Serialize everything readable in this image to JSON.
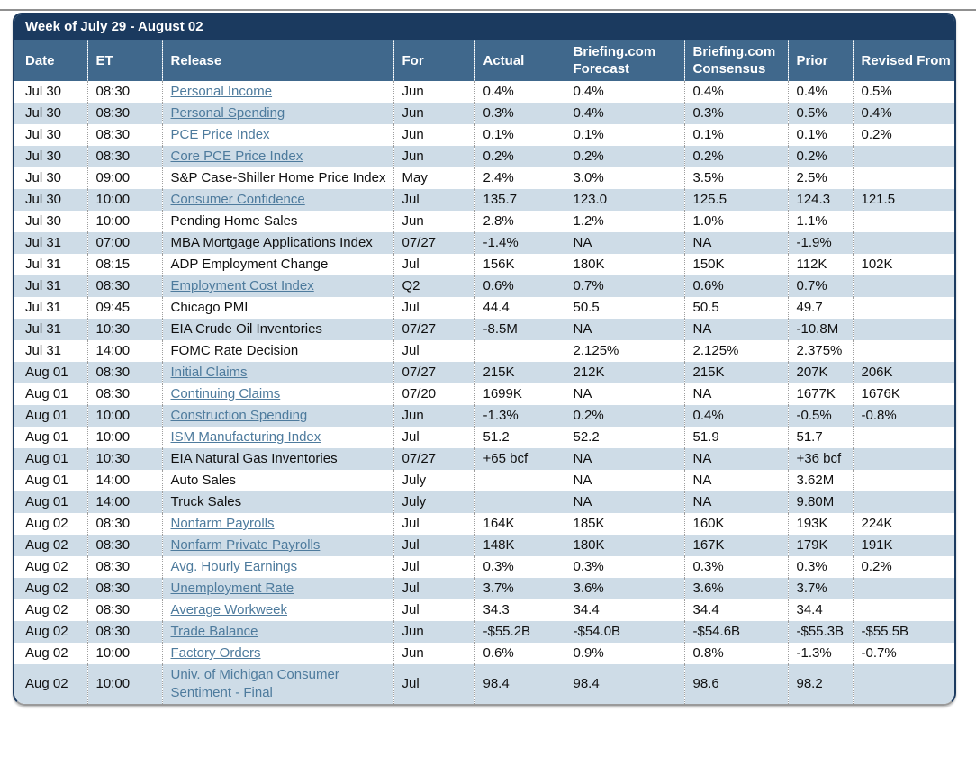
{
  "colors": {
    "title_bar_bg": "#1b3a5f",
    "header_bg": "#40688c",
    "row_alt_bg": "#cedce7",
    "link": "#4e7b9d",
    "outer_border": "#1c3b60"
  },
  "calendar": {
    "title": "Week of July 29 - August 02",
    "columns": [
      "Date",
      "ET",
      "Release",
      "For",
      "Actual",
      "Briefing.com Forecast",
      "Briefing.com Consensus",
      "Prior",
      "Revised From"
    ],
    "column_keys": [
      "date",
      "et",
      "release",
      "for",
      "actual",
      "forecast",
      "consensus",
      "prior",
      "revised"
    ],
    "rows": [
      {
        "date": "Jul 30",
        "et": "08:30",
        "release": "Personal Income",
        "link": true,
        "for": "Jun",
        "actual": "0.4%",
        "forecast": "0.4%",
        "consensus": "0.4%",
        "prior": "0.4%",
        "revised": "0.5%"
      },
      {
        "date": "Jul 30",
        "et": "08:30",
        "release": "Personal Spending",
        "link": true,
        "for": "Jun",
        "actual": "0.3%",
        "forecast": "0.4%",
        "consensus": "0.3%",
        "prior": "0.5%",
        "revised": "0.4%"
      },
      {
        "date": "Jul 30",
        "et": "08:30",
        "release": "PCE Price Index",
        "link": true,
        "for": "Jun",
        "actual": "0.1%",
        "forecast": "0.1%",
        "consensus": "0.1%",
        "prior": "0.1%",
        "revised": "0.2%"
      },
      {
        "date": "Jul 30",
        "et": "08:30",
        "release": "Core PCE Price Index",
        "link": true,
        "for": "Jun",
        "actual": "0.2%",
        "forecast": "0.2%",
        "consensus": "0.2%",
        "prior": "0.2%",
        "revised": ""
      },
      {
        "date": "Jul 30",
        "et": "09:00",
        "release": "S&P Case-Shiller Home Price Index",
        "link": false,
        "for": "May",
        "actual": "2.4%",
        "forecast": "3.0%",
        "consensus": "3.5%",
        "prior": "2.5%",
        "revised": ""
      },
      {
        "date": "Jul 30",
        "et": "10:00",
        "release": "Consumer Confidence",
        "link": true,
        "for": "Jul",
        "actual": "135.7",
        "forecast": "123.0",
        "consensus": "125.5",
        "prior": "124.3",
        "revised": "121.5"
      },
      {
        "date": "Jul 30",
        "et": "10:00",
        "release": "Pending Home Sales",
        "link": false,
        "for": "Jun",
        "actual": "2.8%",
        "forecast": "1.2%",
        "consensus": "1.0%",
        "prior": "1.1%",
        "revised": ""
      },
      {
        "date": "Jul 31",
        "et": "07:00",
        "release": "MBA Mortgage Applications Index",
        "link": false,
        "for": "07/27",
        "actual": "-1.4%",
        "forecast": "NA",
        "consensus": "NA",
        "prior": "-1.9%",
        "revised": ""
      },
      {
        "date": "Jul 31",
        "et": "08:15",
        "release": "ADP Employment Change",
        "link": false,
        "for": "Jul",
        "actual": "156K",
        "forecast": "180K",
        "consensus": "150K",
        "prior": "112K",
        "revised": "102K"
      },
      {
        "date": "Jul 31",
        "et": "08:30",
        "release": "Employment Cost Index",
        "link": true,
        "for": "Q2",
        "actual": "0.6%",
        "forecast": "0.7%",
        "consensus": "0.6%",
        "prior": "0.7%",
        "revised": ""
      },
      {
        "date": "Jul 31",
        "et": "09:45",
        "release": "Chicago PMI",
        "link": false,
        "for": "Jul",
        "actual": "44.4",
        "forecast": "50.5",
        "consensus": "50.5",
        "prior": "49.7",
        "revised": ""
      },
      {
        "date": "Jul 31",
        "et": "10:30",
        "release": "EIA Crude Oil Inventories",
        "link": false,
        "for": "07/27",
        "actual": "-8.5M",
        "forecast": "NA",
        "consensus": "NA",
        "prior": "-10.8M",
        "revised": ""
      },
      {
        "date": "Jul 31",
        "et": "14:00",
        "release": "FOMC Rate Decision",
        "link": false,
        "for": "Jul",
        "actual": "",
        "forecast": "2.125%",
        "consensus": "2.125%",
        "prior": "2.375%",
        "revised": ""
      },
      {
        "date": "Aug 01",
        "et": "08:30",
        "release": "Initial Claims",
        "link": true,
        "for": "07/27",
        "actual": "215K",
        "forecast": "212K",
        "consensus": "215K",
        "prior": "207K",
        "revised": "206K"
      },
      {
        "date": "Aug 01",
        "et": "08:30",
        "release": "Continuing Claims",
        "link": true,
        "for": "07/20",
        "actual": "1699K",
        "forecast": "NA",
        "consensus": "NA",
        "prior": "1677K",
        "revised": "1676K"
      },
      {
        "date": "Aug 01",
        "et": "10:00",
        "release": "Construction Spending",
        "link": true,
        "for": "Jun",
        "actual": "-1.3%",
        "forecast": "0.2%",
        "consensus": "0.4%",
        "prior": "-0.5%",
        "revised": "-0.8%"
      },
      {
        "date": "Aug 01",
        "et": "10:00",
        "release": "ISM Manufacturing Index",
        "link": true,
        "for": "Jul",
        "actual": "51.2",
        "forecast": "52.2",
        "consensus": "51.9",
        "prior": "51.7",
        "revised": ""
      },
      {
        "date": "Aug 01",
        "et": "10:30",
        "release": "EIA Natural Gas Inventories",
        "link": false,
        "for": "07/27",
        "actual": "+65 bcf",
        "forecast": "NA",
        "consensus": "NA",
        "prior": "+36 bcf",
        "revised": ""
      },
      {
        "date": "Aug 01",
        "et": "14:00",
        "release": "Auto Sales",
        "link": false,
        "for": "July",
        "actual": "",
        "forecast": "NA",
        "consensus": "NA",
        "prior": "3.62M",
        "revised": ""
      },
      {
        "date": "Aug 01",
        "et": "14:00",
        "release": "Truck Sales",
        "link": false,
        "for": "July",
        "actual": "",
        "forecast": "NA",
        "consensus": "NA",
        "prior": "9.80M",
        "revised": ""
      },
      {
        "date": "Aug 02",
        "et": "08:30",
        "release": "Nonfarm Payrolls",
        "link": true,
        "for": "Jul",
        "actual": "164K",
        "forecast": "185K",
        "consensus": "160K",
        "prior": "193K",
        "revised": "224K"
      },
      {
        "date": "Aug 02",
        "et": "08:30",
        "release": "Nonfarm Private Payrolls",
        "link": true,
        "for": "Jul",
        "actual": "148K",
        "forecast": "180K",
        "consensus": "167K",
        "prior": "179K",
        "revised": "191K"
      },
      {
        "date": "Aug 02",
        "et": "08:30",
        "release": "Avg. Hourly Earnings",
        "link": true,
        "for": "Jul",
        "actual": "0.3%",
        "forecast": "0.3%",
        "consensus": "0.3%",
        "prior": "0.3%",
        "revised": "0.2%"
      },
      {
        "date": "Aug 02",
        "et": "08:30",
        "release": "Unemployment Rate",
        "link": true,
        "for": "Jul",
        "actual": "3.7%",
        "forecast": "3.6%",
        "consensus": "3.6%",
        "prior": "3.7%",
        "revised": ""
      },
      {
        "date": "Aug 02",
        "et": "08:30",
        "release": "Average Workweek",
        "link": true,
        "for": "Jul",
        "actual": "34.3",
        "forecast": "34.4",
        "consensus": "34.4",
        "prior": "34.4",
        "revised": ""
      },
      {
        "date": "Aug 02",
        "et": "08:30",
        "release": "Trade Balance",
        "link": true,
        "for": "Jun",
        "actual": "-$55.2B",
        "forecast": "-$54.0B",
        "consensus": "-$54.6B",
        "prior": "-$55.3B",
        "revised": "-$55.5B"
      },
      {
        "date": "Aug 02",
        "et": "10:00",
        "release": "Factory Orders",
        "link": true,
        "for": "Jun",
        "actual": "0.6%",
        "forecast": "0.9%",
        "consensus": "0.8%",
        "prior": "-1.3%",
        "revised": "-0.7%"
      },
      {
        "date": "Aug 02",
        "et": "10:00",
        "release": "Univ. of Michigan Consumer Sentiment - Final",
        "link": true,
        "for": "Jul",
        "actual": "98.4",
        "forecast": "98.4",
        "consensus": "98.6",
        "prior": "98.2",
        "revised": ""
      }
    ]
  }
}
